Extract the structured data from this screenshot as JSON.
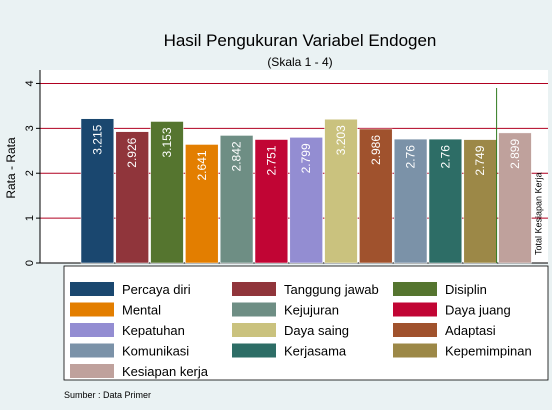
{
  "chart_data": {
    "type": "bar",
    "title": "Hasil Pengukuran Variabel Endogen",
    "subtitle": "(Skala 1 - 4)",
    "ylabel": "Rata - Rata",
    "annotation": "Total Kesiapan Kerja",
    "source": "Sumber : Data Primer",
    "ylim": [
      0,
      4.3
    ],
    "yticks": [
      0,
      1,
      2,
      3,
      4
    ],
    "grid": true,
    "series": [
      {
        "name": "Percaya diri",
        "color": "#1a476f",
        "values": [
          3.215
        ]
      },
      {
        "name": "Tanggung jawab",
        "color": "#90353b",
        "values": [
          2.926
        ]
      },
      {
        "name": "Disiplin",
        "color": "#55752f",
        "values": [
          3.153
        ]
      },
      {
        "name": "Mental",
        "color": "#e37e00",
        "values": [
          2.641
        ]
      },
      {
        "name": "Kejujuran",
        "color": "#6e8e84",
        "values": [
          2.842
        ]
      },
      {
        "name": "Daya juang",
        "color": "#c10534",
        "values": [
          2.751
        ]
      },
      {
        "name": "Kepatuhan",
        "color": "#938dd2",
        "values": [
          2.799
        ]
      },
      {
        "name": "Daya saing",
        "color": "#cac27e",
        "values": [
          3.203
        ]
      },
      {
        "name": "Adaptasi",
        "color": "#a0522d",
        "values": [
          2.986
        ]
      },
      {
        "name": "Komunikasi",
        "color": "#7b92a8",
        "values": [
          2.76
        ]
      },
      {
        "name": "Kerjasama",
        "color": "#2d6d66",
        "values": [
          2.76
        ]
      },
      {
        "name": "Kepemimpinan",
        "color": "#9c8847",
        "values": [
          2.749
        ]
      },
      {
        "name": "Kesiapan kerja",
        "color": "#bfa19c",
        "values": [
          2.899
        ]
      }
    ]
  }
}
